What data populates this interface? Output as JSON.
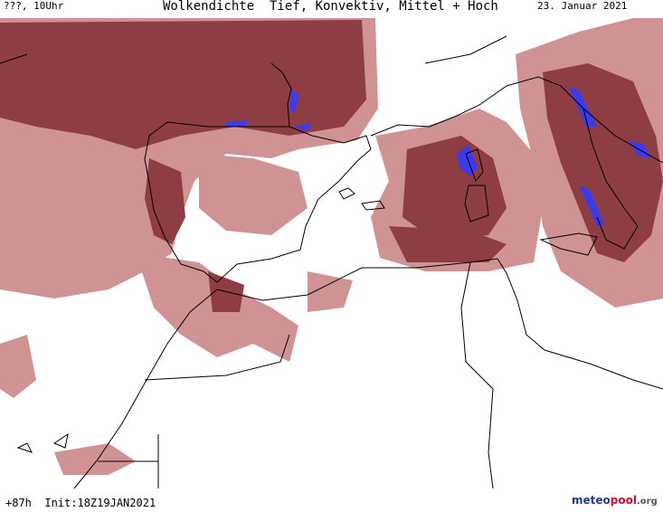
{
  "header": {
    "left": "???, 10Uhr",
    "title": "Wolkendichte  Tief, Konvektiv, Mittel + Hoch",
    "date": "23. Januar 2021"
  },
  "footer": {
    "run": "+87h  Init:18Z19JAN2021",
    "logo": {
      "part1": "meteo",
      "part2": "pool",
      "part3": ".org"
    }
  }
}
